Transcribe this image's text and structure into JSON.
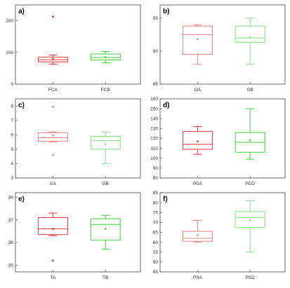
{
  "chart_data": [
    {
      "type": "box",
      "panel_label": "a)",
      "ylim": [
        0,
        250
      ],
      "yticks": [
        0,
        100,
        200
      ],
      "categories": [
        "FCA",
        "FCB"
      ],
      "colors": [
        "#e8323c",
        "#3ccc3c"
      ],
      "boxes": [
        {
          "whisker_low": 63,
          "q1": 70,
          "median": 77,
          "q3": 85,
          "whisker_high": 92,
          "mean": 80,
          "outliers": [
            213
          ]
        },
        {
          "whisker_low": 67,
          "q1": 76,
          "median": 84,
          "q3": 95,
          "whisker_high": 103,
          "mean": 85,
          "outliers": []
        }
      ]
    },
    {
      "type": "box",
      "panel_label": "b)",
      "ylim": [
        85,
        97
      ],
      "yticks": [
        85,
        90,
        95
      ],
      "categories": [
        "OA",
        "OB"
      ],
      "colors": [
        "#f08080",
        "#80e080"
      ],
      "boxes": [
        {
          "whisker_low": 88,
          "q1": 89.5,
          "median": 92.5,
          "q3": 93.8,
          "whisker_high": 94,
          "mean": 91.8,
          "outliers": []
        },
        {
          "whisker_low": 88,
          "q1": 91.3,
          "median": 92,
          "q3": 93.8,
          "whisker_high": 95,
          "mean": 92.1,
          "outliers": []
        }
      ]
    },
    {
      "type": "box",
      "panel_label": "c)",
      "ylim": [
        3,
        8.5
      ],
      "yticks": [
        3,
        4,
        5,
        6,
        7,
        8
      ],
      "categories": [
        "GA",
        "GB"
      ],
      "colors": [
        "#f08080",
        "#80e080"
      ],
      "boxes": [
        {
          "whisker_low": 5.5,
          "q1": 5.55,
          "median": 5.8,
          "q3": 6.15,
          "whisker_high": 6.2,
          "mean": 5.95,
          "outliers": [
            7.95,
            4.6
          ]
        },
        {
          "whisker_low": 4.0,
          "q1": 5.0,
          "median": 5.6,
          "q3": 5.9,
          "whisker_high": 6.2,
          "mean": 5.35,
          "outliers": []
        }
      ]
    },
    {
      "type": "box",
      "panel_label": "d)",
      "ylim": [
        80,
        160
      ],
      "yticks": [
        80,
        90,
        100,
        110,
        120,
        130,
        140,
        150,
        160
      ],
      "categories": [
        "PDA",
        "PDD"
      ],
      "colors": [
        "#e8323c",
        "#3ccc3c"
      ],
      "boxes": [
        {
          "whisker_low": 104,
          "q1": 109,
          "median": 114,
          "q3": 127,
          "whisker_high": 132,
          "mean": 117,
          "outliers": []
        },
        {
          "whisker_low": 99,
          "q1": 106,
          "median": 116,
          "q3": 126,
          "whisker_high": 150,
          "mean": 118,
          "outliers": []
        }
      ]
    },
    {
      "type": "box",
      "panel_label": "e)",
      "ylim": [
        34.7,
        38.2
      ],
      "yticks": [
        35,
        36,
        37,
        38
      ],
      "categories": [
        "TA",
        "TB"
      ],
      "colors": [
        "#e8323c",
        "#3ccc3c"
      ],
      "boxes": [
        {
          "whisker_low": 36.3,
          "q1": 36.35,
          "median": 36.6,
          "q3": 37.1,
          "whisker_high": 37.3,
          "mean": 36.6,
          "outliers": [
            35.2
          ]
        },
        {
          "whisker_low": 35.7,
          "q1": 36.1,
          "median": 36.8,
          "q3": 37.05,
          "whisker_high": 37.2,
          "mean": 36.6,
          "outliers": []
        }
      ]
    },
    {
      "type": "box",
      "panel_label": "f)",
      "ylim": [
        45,
        85
      ],
      "yticks": [
        45,
        50,
        55,
        60,
        65,
        70,
        75,
        80,
        85
      ],
      "categories": [
        "PSA",
        "PSD"
      ],
      "colors": [
        "#f08080",
        "#80e080"
      ],
      "boxes": [
        {
          "whisker_low": 60,
          "q1": 60.5,
          "median": 62,
          "q3": 65.5,
          "whisker_high": 71,
          "mean": 63.5,
          "outliers": []
        },
        {
          "whisker_low": 55,
          "q1": 67.5,
          "median": 72.5,
          "q3": 75.5,
          "whisker_high": 81,
          "mean": 71,
          "outliers": []
        }
      ]
    }
  ]
}
